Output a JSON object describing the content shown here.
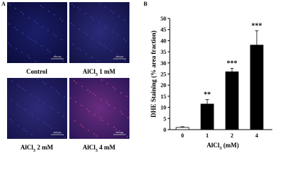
{
  "panel_labels": [
    "A",
    "B"
  ],
  "images": [
    {
      "label": [
        "Control"
      ],
      "scale_bar": "200 μm"
    },
    {
      "label": [
        "AlCl",
        "3",
        " 1 mM"
      ],
      "scale_bar": "200 μm"
    },
    {
      "label": [
        "AlCl",
        "3",
        " 2 mM"
      ],
      "scale_bar": "200 μm"
    },
    {
      "label": [
        "AlCl",
        "3",
        " 4 mM"
      ],
      "scale_bar": "200 μm"
    }
  ],
  "chart_data": {
    "type": "bar",
    "categories": [
      "0",
      "1",
      "2",
      "4"
    ],
    "values": [
      1,
      11.5,
      26,
      38
    ],
    "errors": [
      0.3,
      2,
      1.5,
      6.5
    ],
    "colors": [
      "#ffffff",
      "#000000",
      "#000000",
      "#000000"
    ],
    "annotations": [
      {
        "category": "1",
        "text": "**"
      },
      {
        "category": "2",
        "text": "***"
      },
      {
        "category": "4",
        "text": "***"
      }
    ],
    "xlabel": [
      "AlCl",
      "3",
      " (mM)"
    ],
    "ylabel": "DHE Staining (% area fraction)",
    "ylim": [
      0,
      50
    ],
    "yticks": [
      0,
      5,
      10,
      15,
      20,
      25,
      30,
      35,
      40,
      45,
      50
    ]
  }
}
